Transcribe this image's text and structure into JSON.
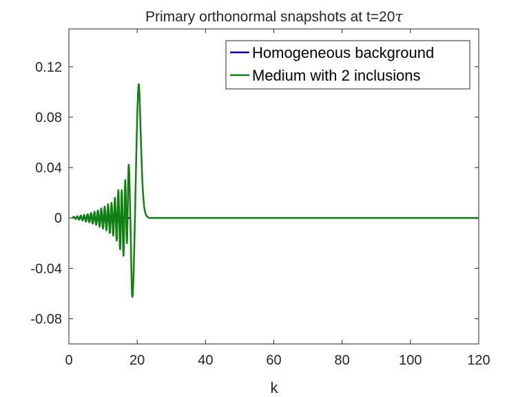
{
  "chart_data": {
    "type": "line",
    "title": "Primary orthonormal snapshots at t=20",
    "title_symbol": "τ",
    "xlabel": "k",
    "ylabel": "",
    "xlim": [
      0,
      120
    ],
    "ylim": [
      -0.1,
      0.15
    ],
    "xticks": [
      0,
      20,
      40,
      60,
      80,
      100,
      120
    ],
    "yticks": [
      -0.08,
      -0.04,
      0,
      0.04,
      0.08,
      0.12
    ],
    "xtick_labels": [
      "0",
      "20",
      "40",
      "60",
      "80",
      "100",
      "120"
    ],
    "ytick_labels": [
      "-0.08",
      "-0.04",
      "0",
      "0.04",
      "0.08",
      "0.12"
    ],
    "grid": false,
    "legend_position": "top-right",
    "series": [
      {
        "name": "Homogeneous background",
        "color": "#0000cc",
        "x": [
          1.0,
          1.5,
          2.0,
          2.5,
          3.0,
          3.5,
          4.0,
          4.5,
          5.0,
          5.5,
          6.0,
          6.5,
          7.0,
          7.5,
          8.0,
          8.5,
          9.0,
          9.5,
          10.0,
          10.5,
          11.0,
          11.5,
          12.0,
          12.5,
          13.0,
          13.5,
          14.0,
          14.5,
          15.0,
          15.5,
          16.0,
          16.5,
          17.0,
          17.5,
          18.0
        ],
        "values": [
          0.0,
          0.0005,
          -0.0005,
          0.001,
          -0.001,
          0.0015,
          -0.0015,
          0.002,
          -0.0025,
          0.003,
          -0.003,
          0.0035,
          -0.004,
          0.004,
          -0.005,
          0.005,
          -0.006,
          0.006,
          -0.007,
          0.007,
          -0.008,
          0.008,
          -0.009,
          0.009,
          -0.008,
          0.01,
          -0.006,
          0.004,
          -0.002,
          0.001,
          0.0,
          0.0,
          0.0,
          0.0,
          0.0
        ]
      },
      {
        "name": "Medium with 2 inclusions",
        "color": "#108010",
        "x": [
          1.0,
          1.5,
          2.0,
          2.5,
          3.0,
          3.5,
          4.0,
          4.5,
          5.0,
          5.5,
          6.0,
          6.5,
          7.0,
          7.5,
          8.0,
          8.5,
          9.0,
          9.5,
          10.0,
          10.5,
          11.0,
          11.5,
          12.0,
          12.5,
          13.0,
          13.5,
          14.0,
          14.5,
          15.0,
          15.5,
          16.0,
          16.5,
          17.0,
          17.5,
          18.0,
          18.5,
          19.0,
          19.5,
          20.0,
          20.5,
          21.0,
          21.5,
          22.0,
          22.5,
          23.0,
          23.5,
          24.0,
          25.0,
          30.0,
          40.0,
          60.0,
          80.0,
          100.0,
          120.0
        ],
        "values": [
          0.0,
          0.001,
          -0.001,
          0.0015,
          -0.0015,
          0.002,
          -0.002,
          0.0025,
          -0.003,
          0.003,
          -0.0035,
          0.004,
          -0.0045,
          0.005,
          -0.0055,
          0.006,
          -0.007,
          0.0075,
          -0.0085,
          0.009,
          -0.01,
          0.011,
          -0.012,
          0.012,
          -0.014,
          0.016,
          -0.018,
          0.022,
          -0.025,
          0.022,
          -0.03,
          0.03,
          -0.02,
          0.042,
          0.0,
          -0.061,
          -0.04,
          0.02,
          0.08,
          0.106,
          0.07,
          0.03,
          0.01,
          0.003,
          0.001,
          0.0,
          0.0,
          0.0,
          0.0,
          0.0,
          0.0,
          0.0,
          0.0,
          0.0
        ]
      }
    ]
  }
}
